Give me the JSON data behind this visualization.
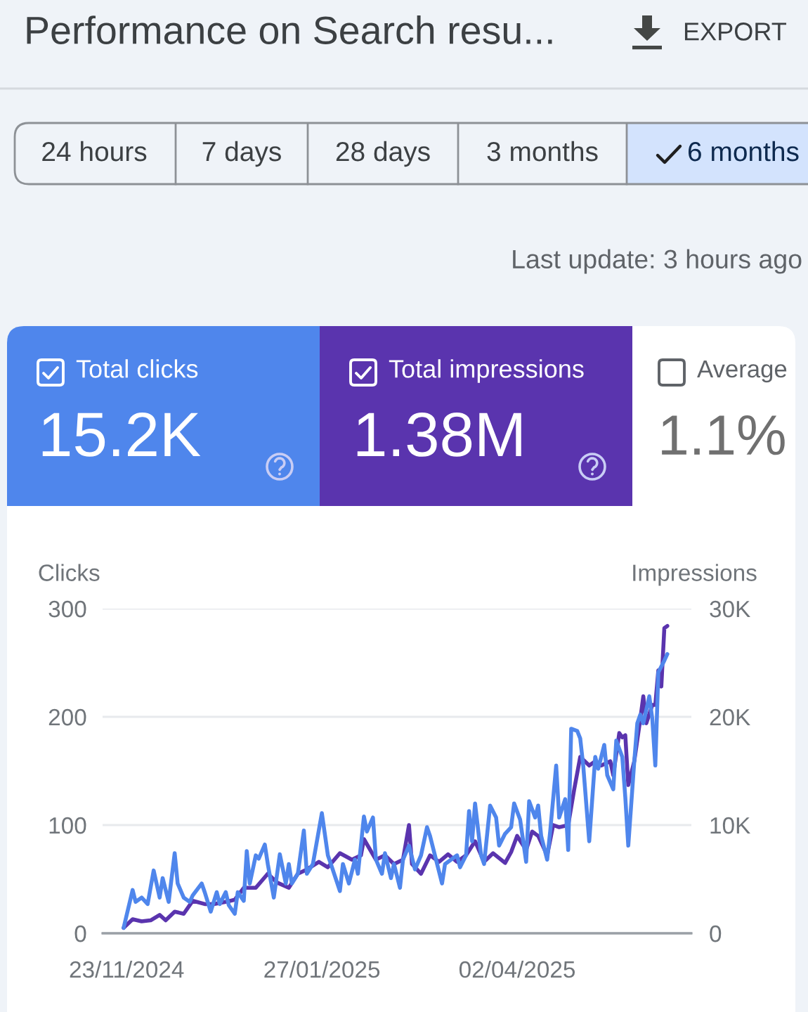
{
  "chart_data": {
    "type": "line",
    "title": "Performance on Search resu...",
    "annotations": [
      "EXPORT",
      "24 hours",
      "7 days",
      "28 days",
      "3 months",
      "6 months",
      "Last update: 3 hours ago",
      "15.2K",
      "1.38M",
      "Average",
      "1.1%"
    ],
    "ylabel": "Clicks",
    "y2label": "Impressions",
    "xlim": [
      "2024-11-15",
      "2025-05-30"
    ],
    "xticks": [
      {
        "value": "2024-11-23",
        "label": "23/11/2024"
      },
      {
        "value": "2025-01-27",
        "label": "27/01/2025"
      },
      {
        "value": "2025-04-02",
        "label": "02/04/2025"
      }
    ],
    "ylim": [
      0,
      300
    ],
    "yticks": [
      0,
      100,
      200,
      300
    ],
    "y2lim": [
      0,
      30000
    ],
    "y2ticks": [
      0,
      {
        "value": 10000,
        "label": "10K"
      },
      {
        "value": 20000,
        "label": "20K"
      },
      {
        "value": 30000,
        "label": "30K"
      }
    ],
    "grid": "y",
    "legend": "top",
    "series": [
      {
        "name": "Total clicks",
        "color": "#4f86ec",
        "axis": "y",
        "x": [
          "2024-11-22",
          "2024-11-25",
          "2024-11-26",
          "2024-11-28",
          "2024-11-30",
          "2024-12-02",
          "2024-12-04",
          "2024-12-05",
          "2024-12-07",
          "2024-12-09",
          "2024-12-10",
          "2024-12-12",
          "2024-12-14",
          "2024-12-15",
          "2024-12-18",
          "2024-12-19",
          "2024-12-21",
          "2024-12-23",
          "2024-12-24",
          "2024-12-26",
          "2024-12-27",
          "2024-12-29",
          "2024-12-30",
          "2025-01-01",
          "2025-01-02",
          "2025-01-03",
          "2025-01-05",
          "2025-01-06",
          "2025-01-08",
          "2025-01-09",
          "2025-01-11",
          "2025-01-13",
          "2025-01-15",
          "2025-01-16",
          "2025-01-17",
          "2025-01-19",
          "2025-01-21",
          "2025-01-22",
          "2025-01-24",
          "2025-01-27",
          "2025-01-29",
          "2025-01-30",
          "2025-02-02",
          "2025-02-03",
          "2025-02-05",
          "2025-02-07",
          "2025-02-08",
          "2025-02-10",
          "2025-02-11",
          "2025-02-13",
          "2025-02-14",
          "2025-02-16",
          "2025-02-17",
          "2025-02-19",
          "2025-02-20",
          "2025-02-22",
          "2025-02-23",
          "2025-02-25",
          "2025-02-27",
          "2025-03-01",
          "2025-03-03",
          "2025-03-04",
          "2025-03-06",
          "2025-03-08",
          "2025-03-09",
          "2025-03-11",
          "2025-03-13",
          "2025-03-14",
          "2025-03-16",
          "2025-03-17",
          "2025-03-18",
          "2025-03-19",
          "2025-03-21",
          "2025-03-22",
          "2025-03-24",
          "2025-03-26",
          "2025-03-27",
          "2025-03-29",
          "2025-03-31",
          "2025-04-01",
          "2025-04-03",
          "2025-04-05",
          "2025-04-06",
          "2025-04-08",
          "2025-04-09",
          "2025-04-10",
          "2025-04-12",
          "2025-04-13",
          "2025-04-15",
          "2025-04-16",
          "2025-04-18",
          "2025-04-19",
          "2025-04-20",
          "2025-04-22",
          "2025-04-23",
          "2025-04-24",
          "2025-04-26",
          "2025-04-28",
          "2025-04-29",
          "2025-05-01",
          "2025-05-02",
          "2025-05-04",
          "2025-05-05",
          "2025-05-07",
          "2025-05-08",
          "2025-05-09",
          "2025-05-11",
          "2025-05-12",
          "2025-05-13",
          "2025-05-14",
          "2025-05-16",
          "2025-05-17",
          "2025-05-18",
          "2025-05-19",
          "2025-05-21",
          "2025-05-22"
        ],
        "values": [
          5,
          40,
          29,
          33,
          27,
          58,
          33,
          51,
          29,
          74,
          46,
          33,
          29,
          35,
          46,
          38,
          20,
          38,
          27,
          38,
          26,
          18,
          38,
          30,
          76,
          46,
          72,
          69,
          82,
          64,
          33,
          73,
          46,
          64,
          46,
          55,
          95,
          55,
          64,
          111,
          72,
          64,
          39,
          64,
          46,
          68,
          55,
          108,
          94,
          107,
          68,
          55,
          74,
          51,
          64,
          42,
          68,
          81,
          59,
          72,
          98,
          90,
          68,
          46,
          64,
          68,
          72,
          61,
          72,
          113,
          85,
          120,
          72,
          64,
          118,
          107,
          81,
          92,
          98,
          120,
          105,
          66,
          122,
          107,
          118,
          90,
          68,
          94,
          155,
          107,
          124,
          77,
          189,
          187,
          180,
          155,
          85,
          163,
          152,
          174,
          146,
          133,
          178,
          163,
          126,
          81,
          159,
          194,
          202,
          194,
          219,
          198,
          155,
          241,
          252,
          258
        ]
      },
      {
        "name": "Total impressions",
        "color": "#5a34ae",
        "axis": "y2",
        "x": [
          "2024-11-22",
          "2024-11-25",
          "2024-11-28",
          "2024-12-01",
          "2024-12-04",
          "2024-12-06",
          "2024-12-09",
          "2024-12-12",
          "2024-12-15",
          "2024-12-19",
          "2024-12-22",
          "2024-12-26",
          "2024-12-29",
          "2025-01-01",
          "2025-01-05",
          "2025-01-09",
          "2025-01-12",
          "2025-01-16",
          "2025-01-19",
          "2025-01-22",
          "2025-01-26",
          "2025-01-29",
          "2025-02-02",
          "2025-02-06",
          "2025-02-09",
          "2025-02-10",
          "2025-02-14",
          "2025-02-17",
          "2025-02-20",
          "2025-02-23",
          "2025-02-25",
          "2025-02-26",
          "2025-03-01",
          "2025-03-04",
          "2025-03-07",
          "2025-03-10",
          "2025-03-13",
          "2025-03-16",
          "2025-03-19",
          "2025-03-22",
          "2025-03-25",
          "2025-03-29",
          "2025-03-31",
          "2025-04-02",
          "2025-04-05",
          "2025-04-07",
          "2025-04-09",
          "2025-04-12",
          "2025-04-14",
          "2025-04-16",
          "2025-04-19",
          "2025-04-21",
          "2025-04-23",
          "2025-04-26",
          "2025-04-28",
          "2025-04-30",
          "2025-05-03",
          "2025-05-04",
          "2025-05-06",
          "2025-05-07",
          "2025-05-08",
          "2025-05-09",
          "2025-05-11",
          "2025-05-13",
          "2025-05-14",
          "2025-05-15",
          "2025-05-17",
          "2025-05-18",
          "2025-05-19",
          "2025-05-20",
          "2025-05-21",
          "2025-05-22"
        ],
        "values": [
          500,
          1300,
          1100,
          1200,
          1700,
          1200,
          2000,
          1800,
          3000,
          2700,
          2700,
          2900,
          3100,
          4200,
          4200,
          5500,
          4700,
          4200,
          5500,
          5900,
          6600,
          6100,
          7400,
          6800,
          7200,
          8700,
          6800,
          7200,
          6400,
          6800,
          10000,
          6400,
          5500,
          7200,
          6600,
          7300,
          6600,
          7200,
          8500,
          6600,
          7400,
          6500,
          7500,
          9000,
          7700,
          9400,
          9000,
          7200,
          10000,
          9800,
          10000,
          13300,
          16300,
          15500,
          15900,
          15500,
          15900,
          14600,
          18500,
          18100,
          18300,
          13700,
          15900,
          19800,
          21900,
          19400,
          21100,
          21100,
          24300,
          22800,
          28200,
          28400
        ]
      }
    ]
  }
}
